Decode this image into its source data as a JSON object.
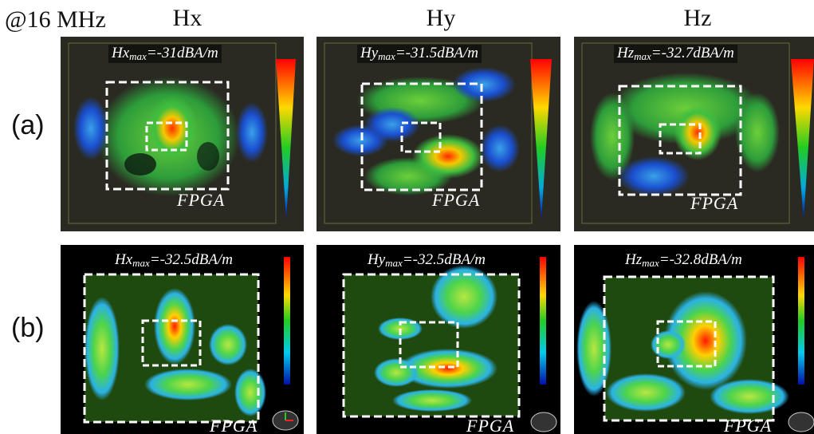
{
  "header": {
    "frequency": "@16 MHz",
    "columns": [
      "Hx",
      "Hy",
      "Hz"
    ]
  },
  "rows": [
    {
      "label": "(a)",
      "panels": [
        {
          "var": "Hx",
          "sub": "max",
          "value": "=-31dBA/m",
          "chip": "FPGA"
        },
        {
          "var": "Hy",
          "sub": "max",
          "value": "=-31.5dBA/m",
          "chip": "FPGA"
        },
        {
          "var": "Hz",
          "sub": "max",
          "value": "=-32.7dBA/m",
          "chip": "FPGA"
        }
      ]
    },
    {
      "label": "(b)",
      "panels": [
        {
          "var": "Hx",
          "sub": "max",
          "value": "=-32.5dBA/m",
          "chip": "FPGA"
        },
        {
          "var": "Hy",
          "sub": "max",
          "value": "=-32.5dBA/m",
          "chip": "FPGA"
        },
        {
          "var": "Hz",
          "sub": "max",
          "value": "=-32.8dBA/m",
          "chip": "FPGA"
        }
      ]
    }
  ],
  "colors": {
    "sim_background": "#1f4a0f",
    "meas_background": "#2a2a22",
    "box_outline": "#ffffff"
  }
}
